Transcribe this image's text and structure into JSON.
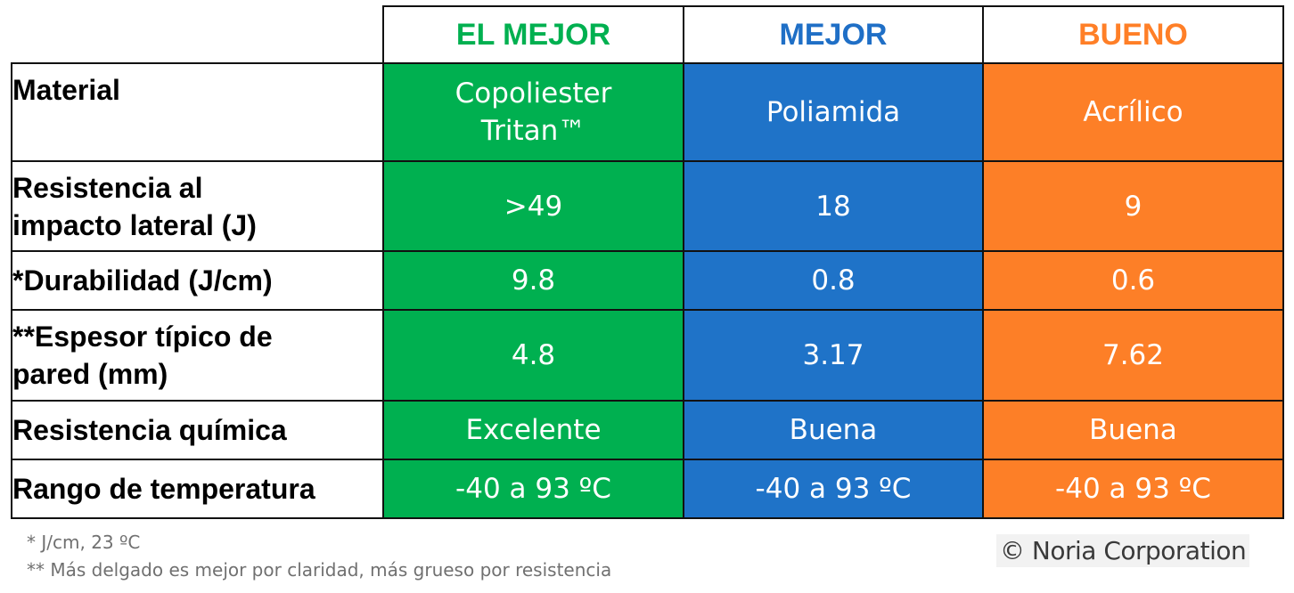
{
  "headers": {
    "best": "EL MEJOR",
    "better": "MEJOR",
    "good": "BUENO"
  },
  "rows": [
    {
      "label": "Material",
      "best": "Copoliester\nTritan™",
      "better": "Poliamida",
      "good": "Acrílico"
    },
    {
      "label": "Resistencia al\nimpacto lateral (J)",
      "best": ">49",
      "better": "18",
      "good": "9"
    },
    {
      "label": "*Durabilidad (J/cm)",
      "best": "9.8",
      "better": "0.8",
      "good": "0.6"
    },
    {
      "label": "**Espesor típico de\npared (mm)",
      "best": "4.8",
      "better": "3.17",
      "good": "7.62"
    },
    {
      "label": "Resistencia química",
      "best": "Excelente",
      "better": "Buena",
      "good": "Buena"
    },
    {
      "label": "Rango de temperatura",
      "best": "-40 a 93 ºC",
      "better": "-40 a 93 ºC",
      "good": "-40 a 93 ºC"
    }
  ],
  "footnotes": {
    "note1": "* J/cm, 23 ºC",
    "note2": "** Más delgado es mejor por claridad, más grueso por resistencia"
  },
  "copyright": "© Noria Corporation",
  "colors": {
    "best": "#00b050",
    "better": "#1f73c8",
    "good": "#fd7f27"
  }
}
